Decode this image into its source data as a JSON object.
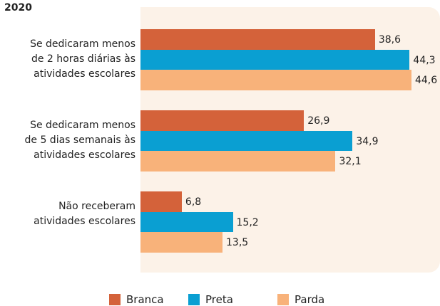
{
  "chart_data": {
    "type": "bar",
    "orientation": "horizontal",
    "title": "2020",
    "categories": [
      "Se dedicaram menos\nde 2 horas diárias às\natividades escolares",
      "Se dedicaram menos\nde 5 dias semanais às\natividades escolares",
      "Não receberam\natividades escolares"
    ],
    "series": [
      {
        "name": "Branca",
        "color": "#d4623a",
        "values": [
          38.6,
          26.9,
          6.8
        ],
        "value_labels": [
          "38,6",
          "26,9",
          "6,8"
        ]
      },
      {
        "name": "Preta",
        "color": "#0a9fd2",
        "values": [
          44.3,
          34.9,
          15.2
        ],
        "value_labels": [
          "44,3",
          "34,9",
          "15,2"
        ]
      },
      {
        "name": "Parda",
        "color": "#f8b27a",
        "values": [
          44.6,
          32.1,
          13.5
        ],
        "value_labels": [
          "44,6",
          "32,1",
          "13,5"
        ]
      }
    ],
    "legend": "bottom"
  }
}
